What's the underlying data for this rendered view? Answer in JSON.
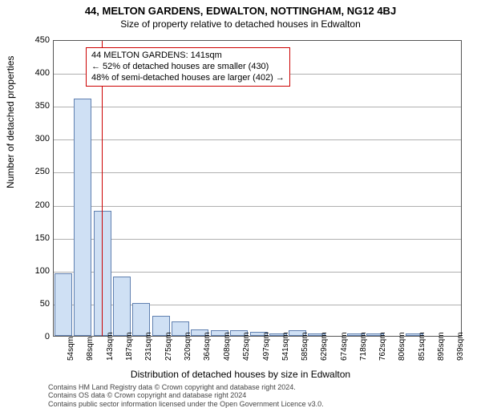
{
  "title_main": "44, MELTON GARDENS, EDWALTON, NOTTINGHAM, NG12 4BJ",
  "title_sub": "Size of property relative to detached houses in Edwalton",
  "ylabel": "Number of detached properties",
  "xlabel": "Distribution of detached houses by size in Edwalton",
  "footer_line1": "Contains HM Land Registry data © Crown copyright and database right 2024.",
  "footer_line2": "Contains OS data © Crown copyright and database right 2024",
  "footer_line3": "Contains public sector information licensed under the Open Government Licence v3.0.",
  "chart": {
    "type": "bar",
    "background_color": "#ffffff",
    "grid_color": "#b0b0b0",
    "bar_fill": "#cfe0f4",
    "bar_stroke": "#6080b0",
    "marker_color": "#cc0000",
    "ylim": [
      0,
      450
    ],
    "ytick_step": 50,
    "yticks": [
      0,
      50,
      100,
      150,
      200,
      250,
      300,
      350,
      400,
      450
    ],
    "bar_width_sqm": 40,
    "marker_x_sqm": 141,
    "x_domain": [
      32,
      960
    ],
    "bars": [
      {
        "x": 54,
        "v": 95
      },
      {
        "x": 98,
        "v": 360
      },
      {
        "x": 143,
        "v": 190
      },
      {
        "x": 187,
        "v": 90
      },
      {
        "x": 231,
        "v": 50
      },
      {
        "x": 275,
        "v": 30
      },
      {
        "x": 320,
        "v": 22
      },
      {
        "x": 364,
        "v": 10
      },
      {
        "x": 408,
        "v": 8
      },
      {
        "x": 452,
        "v": 8
      },
      {
        "x": 497,
        "v": 6
      },
      {
        "x": 541,
        "v": 4
      },
      {
        "x": 585,
        "v": 8
      },
      {
        "x": 629,
        "v": 4
      },
      {
        "x": 674,
        "v": 0
      },
      {
        "x": 718,
        "v": 4
      },
      {
        "x": 762,
        "v": 4
      },
      {
        "x": 806,
        "v": 0
      },
      {
        "x": 851,
        "v": 4
      },
      {
        "x": 895,
        "v": 0
      },
      {
        "x": 939,
        "v": 0
      }
    ],
    "xticks": [
      "54sqm",
      "98sqm",
      "143sqm",
      "187sqm",
      "231sqm",
      "275sqm",
      "320sqm",
      "364sqm",
      "408sqm",
      "452sqm",
      "497sqm",
      "541sqm",
      "585sqm",
      "629sqm",
      "674sqm",
      "718sqm",
      "762sqm",
      "806sqm",
      "851sqm",
      "895sqm",
      "939sqm"
    ]
  },
  "annotation": {
    "line1": "44 MELTON GARDENS: 141sqm",
    "line2": "← 52% of detached houses are smaller (430)",
    "line3": "48% of semi-detached houses are larger (402) →"
  }
}
